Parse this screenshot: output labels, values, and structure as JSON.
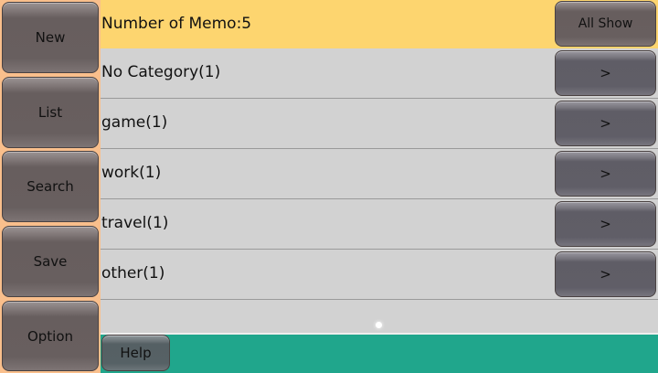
{
  "sidebar": {
    "items": [
      {
        "label": "New"
      },
      {
        "label": "List"
      },
      {
        "label": "Search"
      },
      {
        "label": "Save"
      },
      {
        "label": "Option"
      }
    ]
  },
  "header": {
    "title": "Number of Memo:5",
    "all_show_label": "All Show"
  },
  "categories": [
    {
      "label": "No Category(1)",
      "button": ">"
    },
    {
      "label": "game(1)",
      "button": ">"
    },
    {
      "label": "work(1)",
      "button": ">"
    },
    {
      "label": "travel(1)",
      "button": ">"
    },
    {
      "label": "other(1)",
      "button": ">"
    }
  ],
  "footer": {
    "help_label": "Help"
  },
  "colors": {
    "sidebar": "#f9bf8c",
    "header": "#fdd56f",
    "list": "#d2d2d2",
    "footer": "#20a68c"
  }
}
